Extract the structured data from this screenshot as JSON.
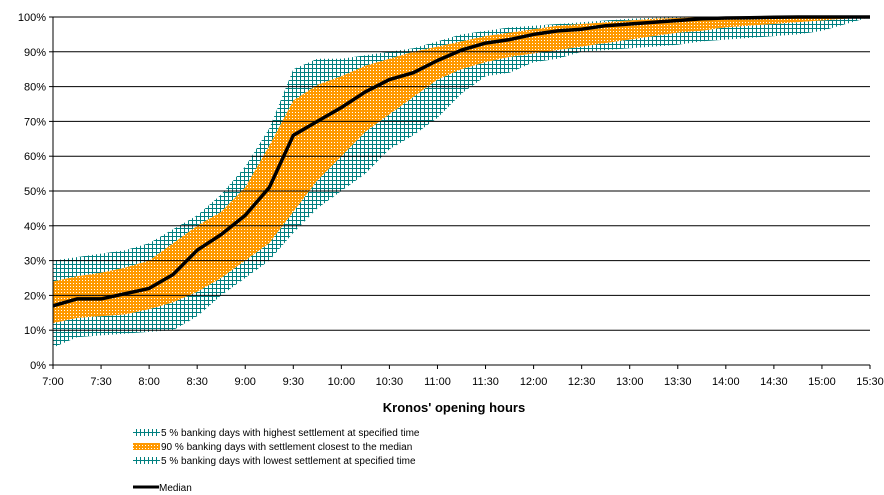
{
  "chart_data": {
    "type": "area",
    "title": "",
    "xlabel": "Kronos' opening hours",
    "ylabel": "",
    "x_ticks": [
      "7:00",
      "7:30",
      "8:00",
      "8:30",
      "9:00",
      "9:30",
      "10:00",
      "10:30",
      "11:00",
      "11:30",
      "12:00",
      "12:30",
      "13:00",
      "13:30",
      "14:00",
      "14:30",
      "15:00",
      "15:30"
    ],
    "y_ticks": [
      "0%",
      "10%",
      "20%",
      "30%",
      "40%",
      "50%",
      "60%",
      "70%",
      "80%",
      "90%",
      "100%"
    ],
    "ylim": [
      0,
      100
    ],
    "xlim": [
      "7:00",
      "15:30"
    ],
    "grid": "horizontal",
    "legend_position": "bottom-left",
    "x": [
      "7:00",
      "7:15",
      "7:30",
      "7:45",
      "8:00",
      "8:15",
      "8:30",
      "8:45",
      "9:00",
      "9:15",
      "9:30",
      "9:45",
      "10:00",
      "10:15",
      "10:30",
      "10:45",
      "11:00",
      "11:15",
      "11:30",
      "11:45",
      "12:00",
      "12:15",
      "12:30",
      "12:45",
      "13:00",
      "13:15",
      "13:30",
      "13:45",
      "14:00",
      "14:15",
      "14:30",
      "14:45",
      "15:00",
      "15:15",
      "15:30"
    ],
    "series": [
      {
        "name": "5 % banking days with highest settlement at specified time",
        "color": "#008080",
        "pattern": "grid",
        "values": [
          30,
          31,
          32,
          33,
          35,
          39,
          43,
          49,
          57,
          68,
          85,
          88,
          88,
          89,
          90,
          91,
          93,
          95,
          96,
          97,
          97.5,
          98,
          98.5,
          99,
          99.5,
          99.8,
          100,
          100,
          100,
          100,
          100,
          100,
          100,
          100,
          100
        ]
      },
      {
        "name": "90 % banking days with settlement closest to the median",
        "upper": [
          24,
          25.5,
          26.5,
          28,
          30,
          35,
          40,
          44,
          51,
          63,
          76,
          80.5,
          83,
          86,
          88,
          90,
          91.5,
          93,
          94.5,
          95.5,
          96.5,
          97.5,
          98,
          98.5,
          99,
          99.5,
          99.7,
          99.9,
          100,
          100,
          100,
          100,
          100,
          100,
          100
        ],
        "lower": [
          12,
          13.5,
          14,
          14.5,
          16,
          18,
          21,
          25,
          30,
          35,
          44,
          53,
          60,
          67,
          72,
          77,
          82,
          85,
          87,
          88.5,
          89.5,
          90.5,
          91.5,
          92.5,
          93.5,
          94.5,
          95.5,
          96,
          97,
          97.5,
          98,
          98.5,
          99,
          99.5,
          100
        ],
        "color": "#ff9900",
        "pattern": "dots"
      },
      {
        "name": "5 % banking days with lowest settlement at specified time",
        "color": "#008080",
        "pattern": "grid",
        "values": [
          5,
          8,
          8.5,
          9,
          9.5,
          10,
          14,
          20,
          25,
          30,
          38,
          45,
          50,
          55,
          62,
          66,
          71,
          78,
          83,
          84,
          87,
          88,
          90,
          90.5,
          91,
          91.5,
          92,
          93,
          93.5,
          94,
          94.5,
          95,
          96,
          98,
          100
        ]
      },
      {
        "name": "Median",
        "color": "#000000",
        "values": [
          17,
          19,
          19,
          20.5,
          22,
          26,
          33,
          37.5,
          43,
          51,
          66,
          70,
          74,
          78.5,
          82,
          84,
          87.5,
          90.5,
          92.5,
          93.5,
          95,
          96,
          96.5,
          97.5,
          98,
          98.5,
          99,
          99.5,
          99.7,
          99.8,
          99.9,
          100,
          100,
          100,
          100
        ]
      }
    ]
  }
}
